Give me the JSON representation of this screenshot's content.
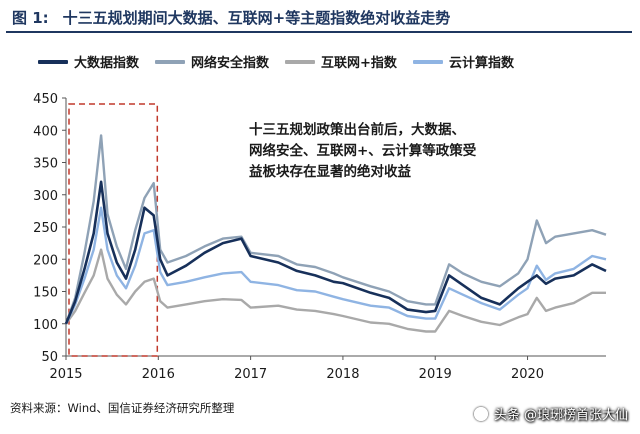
{
  "figure": {
    "label": "图 1:",
    "title": "十三五规划期间大数据、互联网+等主题指数绝对收益走势"
  },
  "annotation": "十三五规划政策出台前后，大数据、网络安全、互联网+、云计算等政策受益板块存在显著的绝对收益",
  "source": "资料来源：Wind、国信证券经济研究所整理",
  "watermark": "头条 @琅琊榜首张大仙",
  "chart_data": {
    "type": "line",
    "title": "",
    "xlabel": "",
    "ylabel": "",
    "ylim": [
      50,
      450
    ],
    "yticks": [
      50,
      100,
      150,
      200,
      250,
      300,
      350,
      400,
      450
    ],
    "xlim": [
      2015.0,
      2020.85
    ],
    "xticks": [
      "2015",
      "2016",
      "2017",
      "2018",
      "2019",
      "2020"
    ],
    "highlight_range": [
      2015.0,
      2016.0
    ],
    "grid": false,
    "legend_position": "top",
    "series": [
      {
        "name": "大数据指数",
        "color": "#17305a",
        "x": [
          2015.0,
          2015.1,
          2015.2,
          2015.3,
          2015.38,
          2015.45,
          2015.55,
          2015.65,
          2015.75,
          2015.85,
          2015.95,
          2016.02,
          2016.1,
          2016.3,
          2016.5,
          2016.7,
          2016.9,
          2017.0,
          2017.3,
          2017.5,
          2017.7,
          2017.9,
          2018.0,
          2018.3,
          2018.5,
          2018.7,
          2018.9,
          2019.0,
          2019.15,
          2019.3,
          2019.5,
          2019.7,
          2019.9,
          2020.0,
          2020.1,
          2020.2,
          2020.3,
          2020.5,
          2020.7,
          2020.85
        ],
        "y": [
          100,
          135,
          185,
          240,
          320,
          240,
          195,
          170,
          215,
          280,
          268,
          200,
          175,
          190,
          210,
          225,
          232,
          205,
          195,
          182,
          175,
          165,
          163,
          148,
          140,
          122,
          118,
          120,
          175,
          160,
          140,
          130,
          155,
          165,
          175,
          162,
          170,
          175,
          192,
          182
        ]
      },
      {
        "name": "网络安全指数",
        "color": "#8fa2b6",
        "x": [
          2015.0,
          2015.1,
          2015.2,
          2015.3,
          2015.38,
          2015.45,
          2015.55,
          2015.65,
          2015.75,
          2015.85,
          2015.95,
          2016.02,
          2016.1,
          2016.3,
          2016.5,
          2016.7,
          2016.9,
          2017.0,
          2017.3,
          2017.5,
          2017.7,
          2017.9,
          2018.0,
          2018.3,
          2018.5,
          2018.7,
          2018.9,
          2019.0,
          2019.15,
          2019.3,
          2019.5,
          2019.7,
          2019.9,
          2020.0,
          2020.1,
          2020.2,
          2020.3,
          2020.5,
          2020.7,
          2020.85
        ],
        "y": [
          100,
          140,
          210,
          290,
          392,
          270,
          220,
          185,
          245,
          295,
          318,
          215,
          195,
          205,
          220,
          232,
          235,
          210,
          205,
          192,
          188,
          178,
          172,
          158,
          150,
          135,
          130,
          130,
          192,
          178,
          165,
          158,
          178,
          200,
          260,
          225,
          235,
          240,
          245,
          238
        ]
      },
      {
        "name": "互联网+指数",
        "color": "#a9a9a9",
        "x": [
          2015.0,
          2015.1,
          2015.2,
          2015.3,
          2015.38,
          2015.45,
          2015.55,
          2015.65,
          2015.75,
          2015.85,
          2015.95,
          2016.02,
          2016.1,
          2016.3,
          2016.5,
          2016.7,
          2016.9,
          2017.0,
          2017.3,
          2017.5,
          2017.7,
          2017.9,
          2018.0,
          2018.3,
          2018.5,
          2018.7,
          2018.9,
          2019.0,
          2019.15,
          2019.3,
          2019.5,
          2019.7,
          2019.9,
          2020.0,
          2020.1,
          2020.2,
          2020.3,
          2020.5,
          2020.7,
          2020.85
        ],
        "y": [
          100,
          120,
          148,
          175,
          215,
          170,
          145,
          130,
          150,
          165,
          170,
          135,
          125,
          130,
          135,
          138,
          137,
          125,
          128,
          122,
          120,
          115,
          112,
          102,
          100,
          92,
          88,
          88,
          120,
          112,
          103,
          98,
          110,
          115,
          140,
          120,
          125,
          132,
          148,
          148
        ]
      },
      {
        "name": "云计算指数",
        "color": "#8fb4e3",
        "x": [
          2015.0,
          2015.1,
          2015.2,
          2015.3,
          2015.38,
          2015.45,
          2015.55,
          2015.65,
          2015.75,
          2015.85,
          2015.95,
          2016.02,
          2016.1,
          2016.3,
          2016.5,
          2016.7,
          2016.9,
          2017.0,
          2017.3,
          2017.5,
          2017.7,
          2017.9,
          2018.0,
          2018.3,
          2018.5,
          2018.7,
          2018.9,
          2019.0,
          2019.15,
          2019.3,
          2019.5,
          2019.7,
          2019.9,
          2020.0,
          2020.1,
          2020.2,
          2020.3,
          2020.5,
          2020.7,
          2020.85
        ],
        "y": [
          100,
          130,
          170,
          215,
          280,
          215,
          175,
          155,
          190,
          240,
          245,
          180,
          160,
          165,
          172,
          178,
          180,
          165,
          160,
          152,
          150,
          142,
          138,
          128,
          125,
          112,
          108,
          108,
          155,
          145,
          132,
          122,
          145,
          155,
          190,
          168,
          178,
          185,
          205,
          200
        ]
      }
    ]
  }
}
